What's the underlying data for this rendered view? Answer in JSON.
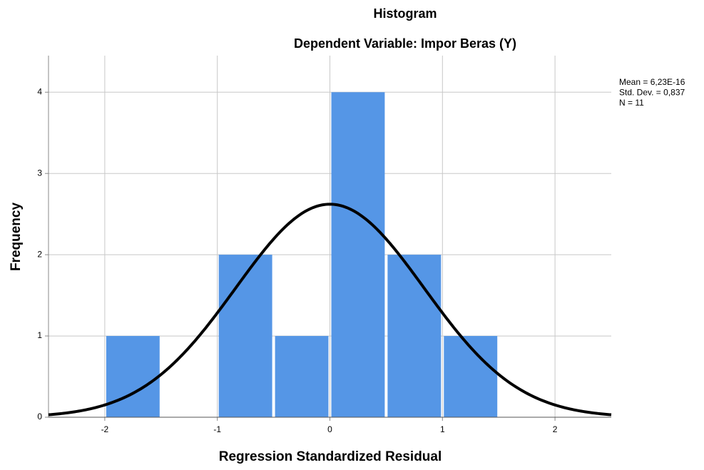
{
  "chart_data": {
    "type": "histogram",
    "title": "Histogram",
    "subtitle": "Dependent Variable: Impor Beras (Y)",
    "x_label": "Regression Standardized Residual",
    "y_label": "Frequency",
    "bins": [
      -2,
      -1.5,
      -1,
      -0.5,
      0,
      0.5,
      1,
      1.5
    ],
    "values": [
      1,
      0,
      2,
      1,
      4,
      2,
      1
    ],
    "color": "#5596e6",
    "xlim": [
      -2.5,
      2.5
    ],
    "xticks": [
      -2,
      -1,
      0,
      1,
      2
    ],
    "ylim": [
      0,
      4.45
    ],
    "yticks": [
      0,
      1,
      2,
      3,
      4
    ],
    "grid": true,
    "stats": [
      {
        "value": 6.23e-16,
        "label": "Mean = 6,23E-16"
      },
      {
        "value": 0.837,
        "label": "Std. Dev. = 0,837"
      },
      {
        "value": 11,
        "label": "N = 11"
      }
    ]
  }
}
